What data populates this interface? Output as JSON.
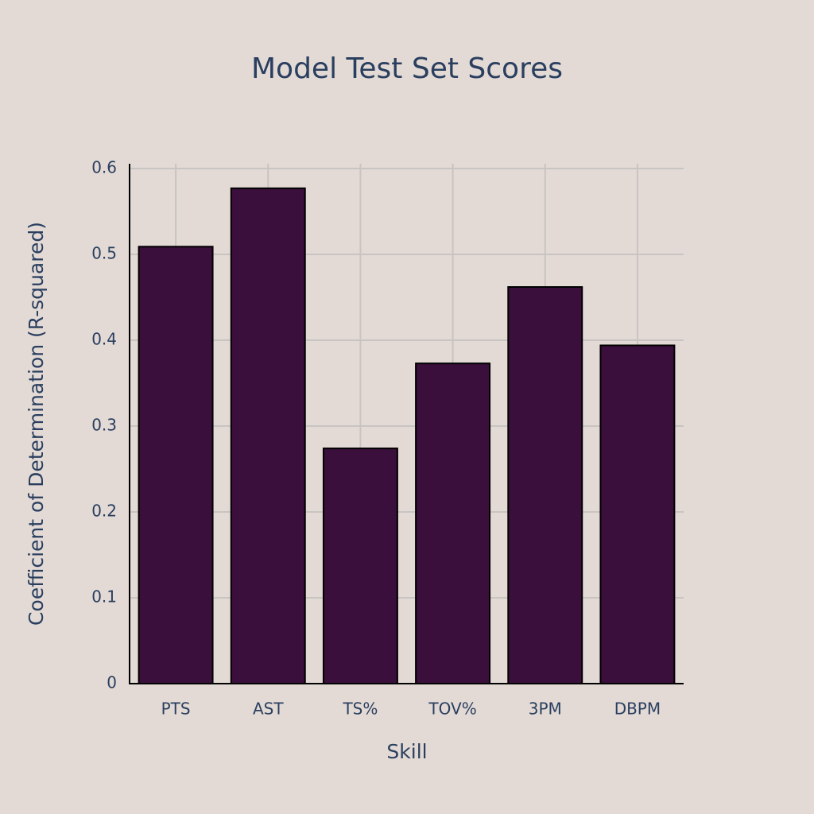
{
  "chart_data": {
    "type": "bar",
    "title": "Model Test Set Scores",
    "x_label": "Skill",
    "y_label": "Coefficient of Determination (R-squared)",
    "categories": [
      "PTS",
      "AST",
      "TS%",
      "TOV%",
      "3PM",
      "DBPM"
    ],
    "values": [
      0.509,
      0.577,
      0.274,
      0.373,
      0.462,
      0.394
    ],
    "color": "#3a0f3b",
    "ylim": [
      0,
      0.6
    ],
    "yticks": [
      0,
      0.1,
      0.2,
      0.3,
      0.4,
      0.5,
      0.6
    ],
    "grid": true
  }
}
